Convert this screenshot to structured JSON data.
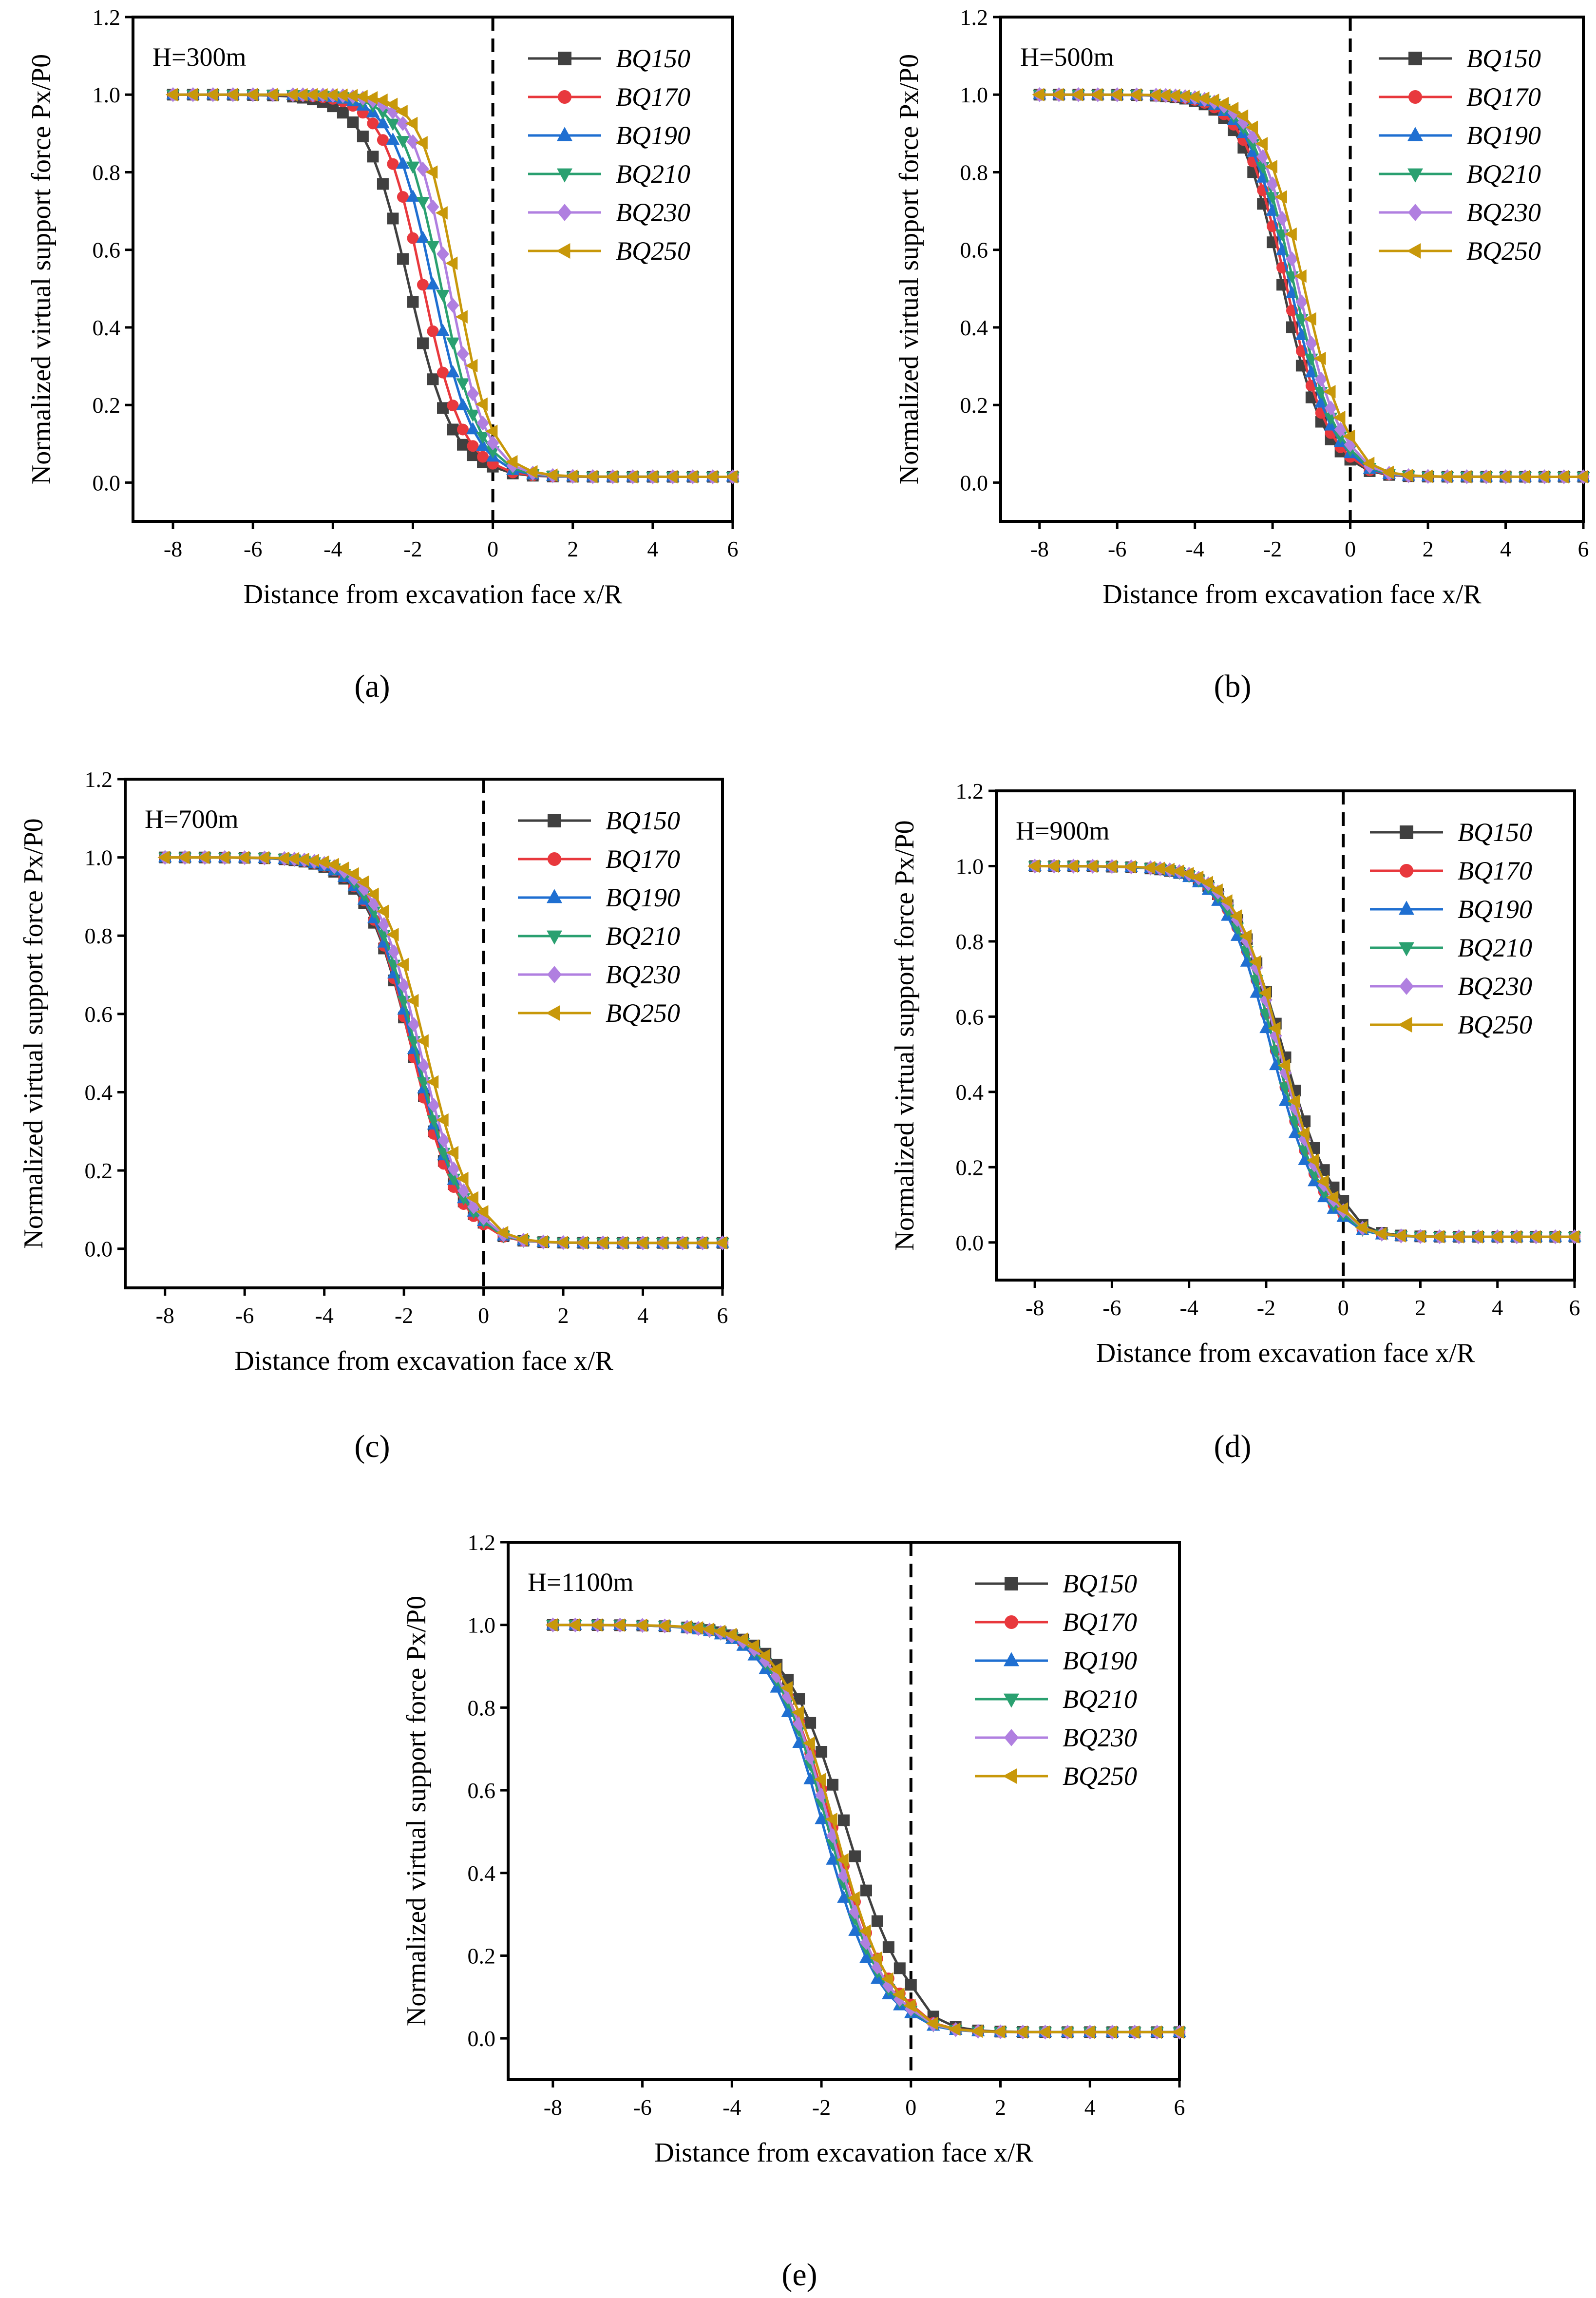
{
  "figure": {
    "type": "multi-panel line chart"
  },
  "chart_data": [
    {
      "type": "line",
      "panel_label": "(a)",
      "annotation": "H=300m",
      "annotation_var": "H",
      "annotation_val": "=300m",
      "xlabel": "Distance from excavation face x/R",
      "ylabel": "Normalized virtual support force Px/P0",
      "xlim": [
        -9,
        6
      ],
      "ylim": [
        -0.1,
        1.2
      ],
      "xticks": [
        -8,
        -6,
        -4,
        -2,
        0,
        2,
        4,
        6
      ],
      "yticks": [
        0.0,
        0.2,
        0.4,
        0.6,
        0.8,
        1.0,
        1.2
      ],
      "vline_x": 0,
      "shift": 0,
      "series": [
        {
          "name": "BQ150",
          "color": "#404040",
          "marker": "square",
          "s0": -2.1,
          "w": 0.55
        },
        {
          "name": "BQ170",
          "color": "#e8383d",
          "marker": "circle",
          "s0": -1.75,
          "w": 0.5
        },
        {
          "name": "BQ190",
          "color": "#1f6fd1",
          "marker": "triangle-up",
          "s0": -1.5,
          "w": 0.5
        },
        {
          "name": "BQ210",
          "color": "#2aa070",
          "marker": "triangle-down",
          "s0": -1.3,
          "w": 0.48
        },
        {
          "name": "BQ230",
          "color": "#b07fe0",
          "marker": "diamond",
          "s0": -1.1,
          "w": 0.46
        },
        {
          "name": "BQ250",
          "color": "#c8980a",
          "marker": "triangle-left",
          "s0": -0.9,
          "w": 0.44
        }
      ]
    },
    {
      "type": "line",
      "panel_label": "(b)",
      "annotation": "H=500m",
      "annotation_var": "H",
      "annotation_val": "=500m",
      "xlabel": "Distance from excavation face x/R",
      "ylabel": "Normalized virtual support force Px/P0",
      "xlim": [
        -9,
        6
      ],
      "ylim": [
        -0.1,
        1.2
      ],
      "xticks": [
        -8,
        -6,
        -4,
        -2,
        0,
        2,
        4,
        6
      ],
      "yticks": [
        0.0,
        0.2,
        0.4,
        0.6,
        0.8,
        1.0,
        1.2
      ],
      "vline_x": 0,
      "series": [
        {
          "name": "BQ150",
          "color": "#404040",
          "marker": "square",
          "s0": -1.75,
          "w": 0.55
        },
        {
          "name": "BQ170",
          "color": "#e8383d",
          "marker": "circle",
          "s0": -1.65,
          "w": 0.55
        },
        {
          "name": "BQ190",
          "color": "#1f6fd1",
          "marker": "triangle-up",
          "s0": -1.55,
          "w": 0.55
        },
        {
          "name": "BQ210",
          "color": "#2aa070",
          "marker": "triangle-down",
          "s0": -1.45,
          "w": 0.55
        },
        {
          "name": "BQ230",
          "color": "#b07fe0",
          "marker": "diamond",
          "s0": -1.35,
          "w": 0.55
        },
        {
          "name": "BQ250",
          "color": "#c8980a",
          "marker": "triangle-left",
          "s0": -1.2,
          "w": 0.55
        }
      ]
    },
    {
      "type": "line",
      "panel_label": "(c)",
      "annotation": "H=700m",
      "annotation_var": "H",
      "annotation_val": "=700m",
      "xlabel": "Distance from excavation face x/R",
      "ylabel": "Normalized virtual support force Px/P0",
      "xlim": [
        -9,
        6
      ],
      "ylim": [
        -0.1,
        1.2
      ],
      "xticks": [
        -8,
        -6,
        -4,
        -2,
        0,
        2,
        4,
        6
      ],
      "yticks": [
        0.0,
        0.2,
        0.4,
        0.6,
        0.8,
        1.0,
        1.2
      ],
      "vline_x": 0,
      "series": [
        {
          "name": "BQ150",
          "color": "#404040",
          "marker": "square",
          "s0": -1.8,
          "w": 0.6
        },
        {
          "name": "BQ170",
          "color": "#e8383d",
          "marker": "circle",
          "s0": -1.8,
          "w": 0.58
        },
        {
          "name": "BQ190",
          "color": "#1f6fd1",
          "marker": "triangle-up",
          "s0": -1.75,
          "w": 0.6
        },
        {
          "name": "BQ210",
          "color": "#2aa070",
          "marker": "triangle-down",
          "s0": -1.7,
          "w": 0.58
        },
        {
          "name": "BQ230",
          "color": "#b07fe0",
          "marker": "diamond",
          "s0": -1.6,
          "w": 0.58
        },
        {
          "name": "BQ250",
          "color": "#c8980a",
          "marker": "triangle-left",
          "s0": -1.45,
          "w": 0.58
        }
      ]
    },
    {
      "type": "line",
      "panel_label": "(d)",
      "annotation": "H=900m",
      "annotation_var": "H",
      "annotation_val": "=900m",
      "xlabel": "Distance from excavation face x/R",
      "ylabel": "Normalized virtual support force Px/P0",
      "xlim": [
        -9,
        6
      ],
      "ylim": [
        -0.1,
        1.2
      ],
      "xticks": [
        -8,
        -6,
        -4,
        -2,
        0,
        2,
        4,
        6
      ],
      "yticks": [
        0.0,
        0.2,
        0.4,
        0.6,
        0.8,
        1.0,
        1.2
      ],
      "vline_x": 0,
      "series": [
        {
          "name": "BQ150",
          "color": "#404040",
          "marker": "square",
          "s0": -1.55,
          "w": 0.68
        },
        {
          "name": "BQ170",
          "color": "#e8383d",
          "marker": "circle",
          "s0": -1.75,
          "w": 0.62
        },
        {
          "name": "BQ190",
          "color": "#1f6fd1",
          "marker": "triangle-up",
          "s0": -1.85,
          "w": 0.62
        },
        {
          "name": "BQ210",
          "color": "#2aa070",
          "marker": "triangle-down",
          "s0": -1.75,
          "w": 0.62
        },
        {
          "name": "BQ230",
          "color": "#b07fe0",
          "marker": "diamond",
          "s0": -1.65,
          "w": 0.62
        },
        {
          "name": "BQ250",
          "color": "#c8980a",
          "marker": "triangle-left",
          "s0": -1.6,
          "w": 0.62
        }
      ]
    },
    {
      "type": "line",
      "panel_label": "(e)",
      "annotation": "H=1100m",
      "annotation_var": "H",
      "annotation_val": "=1100m",
      "xlabel": "Distance from excavation face x/R",
      "ylabel": "Normalized virtual support force Px/P0",
      "xlim": [
        -9,
        6
      ],
      "ylim": [
        -0.1,
        1.2
      ],
      "xticks": [
        -8,
        -6,
        -4,
        -2,
        0,
        2,
        4,
        6
      ],
      "yticks": [
        0.0,
        0.2,
        0.4,
        0.6,
        0.8,
        1.0,
        1.2
      ],
      "vline_x": 0,
      "series": [
        {
          "name": "BQ150",
          "color": "#404040",
          "marker": "square",
          "s0": -1.45,
          "w": 0.7
        },
        {
          "name": "BQ170",
          "color": "#e8383d",
          "marker": "circle",
          "s0": -1.75,
          "w": 0.65
        },
        {
          "name": "BQ190",
          "color": "#1f6fd1",
          "marker": "triangle-up",
          "s0": -1.95,
          "w": 0.62
        },
        {
          "name": "BQ210",
          "color": "#2aa070",
          "marker": "triangle-down",
          "s0": -1.85,
          "w": 0.62
        },
        {
          "name": "BQ230",
          "color": "#b07fe0",
          "marker": "diamond",
          "s0": -1.8,
          "w": 0.62
        },
        {
          "name": "BQ250",
          "color": "#c8980a",
          "marker": "triangle-left",
          "s0": -1.7,
          "w": 0.62
        }
      ]
    }
  ]
}
